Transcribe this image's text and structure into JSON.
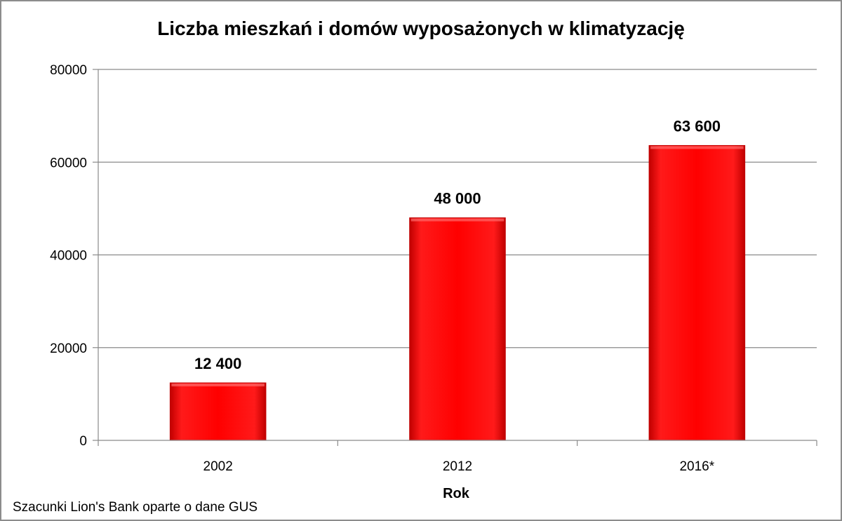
{
  "chart_data": {
    "type": "bar",
    "title": "Liczba mieszkań i domów wyposażonych w klimatyzację",
    "categories": [
      "2002",
      "2012",
      "2016*"
    ],
    "values": [
      12400,
      48000,
      63600
    ],
    "data_labels": [
      "12 400",
      "48 000",
      "63 600"
    ],
    "xlabel": "Rok",
    "ylabel": "",
    "ylim": [
      0,
      80000
    ],
    "yticks": [
      0,
      20000,
      40000,
      60000,
      80000
    ],
    "ytick_labels": [
      "0",
      "20000",
      "40000",
      "60000",
      "80000"
    ],
    "grid": true,
    "legend": "none",
    "bar_color": "#ff0000",
    "source_note": "Szacunki Lion's Bank oparte o dane GUS"
  }
}
